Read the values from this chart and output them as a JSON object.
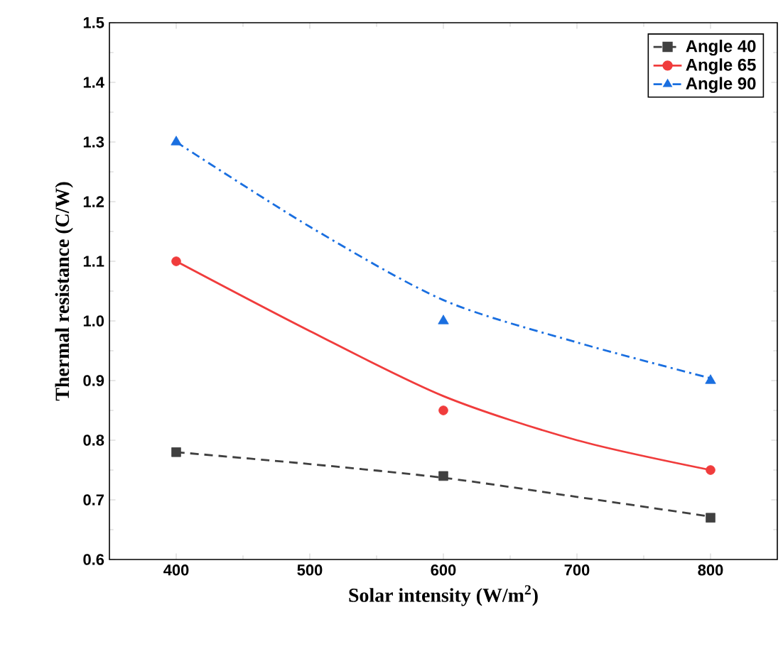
{
  "chart_data": {
    "type": "scatter",
    "xlabel": "Solar intensity (W/m$^{2}$)",
    "ylabel": "Thermal resistance (C/W)",
    "xlim": [
      350,
      850
    ],
    "xticks": [
      400,
      500,
      600,
      700,
      800
    ],
    "ylim": [
      0.6,
      1.5
    ],
    "yticks": [
      0.6,
      0.7,
      0.8,
      0.9,
      {
        "value": 1.0,
        "label": "1.0"
      },
      1.1,
      1.2,
      1.3,
      1.4,
      1.5
    ],
    "legend": "top right",
    "grid": false,
    "x": [
      400,
      600,
      800
    ],
    "series": [
      {
        "name": "Angle 40",
        "color": "#404040",
        "marker": "square",
        "line_style": "dashed",
        "values": [
          0.78,
          0.74,
          0.67
        ]
      },
      {
        "name": "Angle 65",
        "color": "#f03c3c",
        "marker": "circle",
        "line_style": "solid",
        "values": [
          1.1,
          0.85,
          0.75
        ]
      },
      {
        "name": "Angle 90",
        "color": "#1a6fe0",
        "marker": "triangle",
        "line_style": "dashdot",
        "values": [
          1.3,
          1.0,
          0.9
        ]
      },
      {
        "type": "line",
        "color": "#404040",
        "line_style": "dashed",
        "x": [
          400,
          500,
          600,
          700,
          800
        ],
        "values": [
          0.78,
          0.76,
          0.737,
          0.705,
          0.672
        ]
      },
      {
        "type": "line",
        "color": "#f03c3c",
        "line_style": "solid",
        "x": [
          400,
          500,
          600,
          700,
          800
        ],
        "values": [
          1.1,
          0.983,
          0.874,
          0.8,
          0.75
        ]
      },
      {
        "type": "line",
        "color": "#1a6fe0",
        "line_style": "dashdot",
        "x": [
          400,
          500,
          600,
          700,
          800
        ],
        "values": [
          1.3,
          1.158,
          1.035,
          0.964,
          0.904
        ]
      }
    ]
  }
}
